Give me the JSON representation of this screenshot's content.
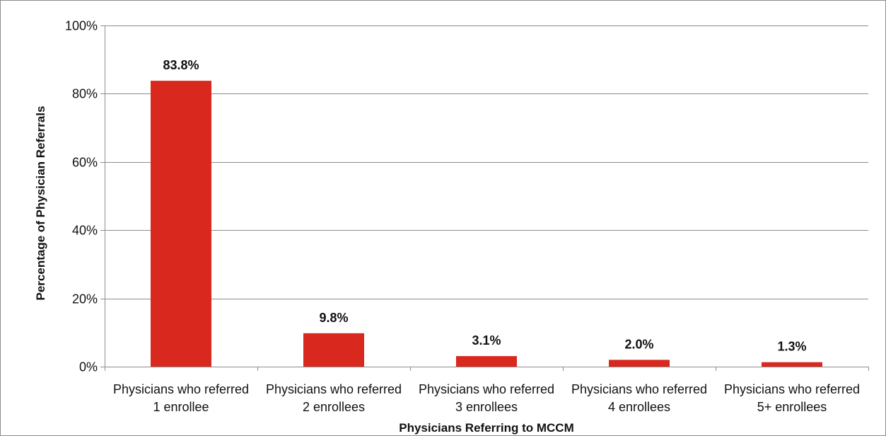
{
  "chart_data": {
    "type": "bar",
    "title": "",
    "xlabel": "Physicians Referring to MCCM",
    "ylabel": "Percentage of Physician Referrals",
    "categories": [
      [
        "Physicians who referred",
        "1 enrollee"
      ],
      [
        "Physicians who referred",
        "2 enrollees"
      ],
      [
        "Physicians who referred",
        "3 enrollees"
      ],
      [
        "Physicians who referred",
        "4 enrollees"
      ],
      [
        "Physicians who referred",
        "5+ enrollees"
      ]
    ],
    "values": [
      83.8,
      9.8,
      3.1,
      2.0,
      1.3
    ],
    "data_labels": [
      "83.8%",
      "9.8%",
      "3.1%",
      "2.0%",
      "1.3%"
    ],
    "ylim": [
      0,
      100
    ],
    "yticks": [
      0,
      20,
      40,
      60,
      80,
      100
    ],
    "ytick_labels": [
      "0%",
      "20%",
      "40%",
      "60%",
      "80%",
      "100%"
    ],
    "grid": true,
    "legend": "none",
    "bar_color": "#d9281e",
    "grid_color": "#8c8c8c"
  }
}
